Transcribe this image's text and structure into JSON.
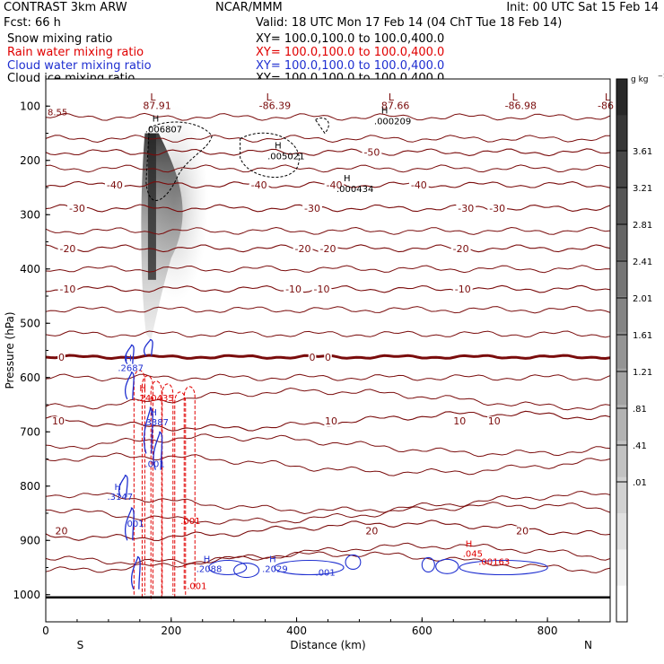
{
  "header": {
    "model": "CONTRAST   3km ARW",
    "center": "NCAR/MMM",
    "init": "Init: 00 UTC Sat 15 Feb 14",
    "fcst": "Fcst:    66 h",
    "valid": "Valid: 18 UTC Mon 17 Feb 14 (04 ChT Tue 18 Feb 14)"
  },
  "fields": [
    {
      "name": "Snow mixing ratio",
      "xy": "XY=  100.0,100.0 to 100.0,400.0",
      "color": "#000000"
    },
    {
      "name": "Rain water mixing ratio",
      "xy": "XY=  100.0,100.0 to 100.0,400.0",
      "color": "#e00000"
    },
    {
      "name": "Cloud water mixing ratio",
      "xy": "XY=  100.0,100.0 to 100.0,400.0",
      "color": "#1f2fd0"
    },
    {
      "name": "Cloud ice mixing ratio",
      "xy": "XY=  100.0,100.0 to 100.0,400.0",
      "color": "#000000"
    }
  ],
  "chart_data": {
    "type": "contour",
    "xlabel": "Distance (km)",
    "ylabel": "Pressure (hPa)",
    "xlim": [
      0,
      900
    ],
    "ylim": [
      1050,
      50
    ],
    "x_ticks": [
      "0",
      "200",
      "400",
      "600",
      "800"
    ],
    "y_ticks": [
      "100",
      "200",
      "300",
      "400",
      "500",
      "600",
      "700",
      "800",
      "900",
      "1000"
    ],
    "end_labels": [
      "S",
      "N"
    ],
    "colorbar": {
      "units": "g kg",
      "units_sup": "−1",
      "labels": [
        "3.61",
        "3.21",
        "2.81",
        "2.41",
        "2.01",
        "1.61",
        "1.21",
        ".81",
        ".41",
        ".01"
      ]
    },
    "temperature_isotherms": [
      {
        "value": -50,
        "p": 185,
        "labels": [
          {
            "x": 520,
            "text": "-50"
          }
        ]
      },
      {
        "value": -40,
        "p": 245,
        "labels": [
          {
            "x": 110,
            "text": "-40"
          },
          {
            "x": 340,
            "text": "-40"
          },
          {
            "x": 460,
            "text": "-40"
          },
          {
            "x": 595,
            "text": "-40"
          }
        ]
      },
      {
        "value": -30,
        "p": 288,
        "labels": [
          {
            "x": 50,
            "text": "-30"
          },
          {
            "x": 425,
            "text": "-30"
          },
          {
            "x": 670,
            "text": "-30"
          },
          {
            "x": 720,
            "text": "-30"
          }
        ]
      },
      {
        "value": -20,
        "p": 362,
        "labels": [
          {
            "x": 35,
            "text": "-20"
          },
          {
            "x": 410,
            "text": "-20"
          },
          {
            "x": 450,
            "text": "-20"
          },
          {
            "x": 662,
            "text": "-20"
          }
        ]
      },
      {
        "value": -10,
        "p": 437,
        "labels": [
          {
            "x": 35,
            "text": "-10"
          },
          {
            "x": 395,
            "text": "-10"
          },
          {
            "x": 440,
            "text": "-10"
          },
          {
            "x": 665,
            "text": "-10"
          }
        ]
      },
      {
        "value": 0,
        "p": 562,
        "labels": [
          {
            "x": 25,
            "text": "0"
          },
          {
            "x": 425,
            "text": "0"
          },
          {
            "x": 450,
            "text": "0"
          }
        ]
      },
      {
        "value": 10,
        "p": 680,
        "labels": [
          {
            "x": 20,
            "text": "10"
          },
          {
            "x": 455,
            "text": "10"
          },
          {
            "x": 660,
            "text": "10"
          },
          {
            "x": 715,
            "text": "10"
          }
        ]
      },
      {
        "value": 20,
        "p": 882,
        "labels": [
          {
            "x": 25,
            "text": "20"
          },
          {
            "x": 520,
            "text": "20"
          },
          {
            "x": 760,
            "text": "20"
          }
        ]
      }
    ],
    "lows": [
      {
        "x": 155,
        "text": "87.91"
      },
      {
        "x": 340,
        "text": "-86.39"
      },
      {
        "x": 535,
        "text": "87.66"
      },
      {
        "x": 732,
        "text": "-86.98"
      },
      {
        "x": 880,
        "text": "-86"
      }
    ],
    "top_left_value": "8.55",
    "snow_max": [
      {
        "x": 170,
        "p": 145,
        "value": ".006807"
      },
      {
        "x": 365,
        "p": 195,
        "value": ".005021"
      },
      {
        "x": 475,
        "p": 255,
        "value": ".000434"
      },
      {
        "x": 535,
        "p": 130,
        "value": ".000209"
      }
    ],
    "cloud_water_max": [
      {
        "x": 115,
        "p": 588,
        "value": ".2687"
      },
      {
        "x": 155,
        "p": 688,
        "value": ".3387"
      },
      {
        "x": 98,
        "p": 825,
        "value": ".3147"
      },
      {
        "x": 240,
        "p": 958,
        "value": ".2088"
      },
      {
        "x": 345,
        "p": 958,
        "value": ".2029"
      }
    ],
    "rain_max": [
      {
        "x": 145,
        "p": 643,
        "value": ".240435"
      },
      {
        "x": 665,
        "p": 930,
        "value": ".045"
      }
    ],
    "other_labels": [
      ".001",
      ".001",
      ".001",
      ".001",
      ".001",
      ".00163"
    ]
  }
}
